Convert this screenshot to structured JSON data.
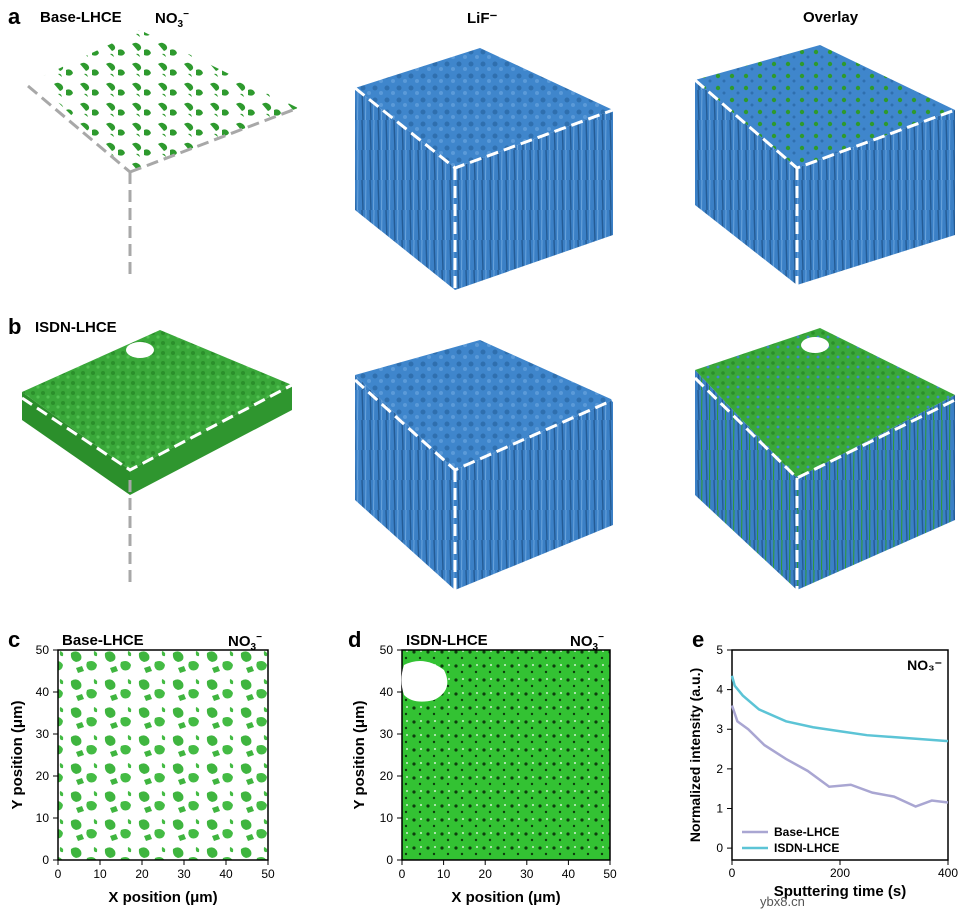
{
  "panels": {
    "a": {
      "letter": "a",
      "sample": "Base-LHCE",
      "col1": "NO",
      "col1_sub": "3",
      "col1_sup": "−",
      "col2": "LiF⁻",
      "col3": "Overlay"
    },
    "b": {
      "letter": "b",
      "sample": "ISDN-LHCE"
    },
    "c": {
      "letter": "c",
      "sample": "Base-LHCE",
      "ion": "NO",
      "ion_sub": "3",
      "ion_sup": "−",
      "xlabel": "X position (μm)",
      "ylabel": "Y position (μm)",
      "xticks": [
        "0",
        "10",
        "20",
        "30",
        "40",
        "50"
      ],
      "yticks": [
        "0",
        "10",
        "20",
        "30",
        "40",
        "50"
      ]
    },
    "d": {
      "letter": "d",
      "sample": "ISDN-LHCE",
      "ion": "NO",
      "ion_sub": "3",
      "ion_sup": "−",
      "xlabel": "X position (μm)",
      "ylabel": "Y position (μm)",
      "xticks": [
        "0",
        "10",
        "20",
        "30",
        "40",
        "50"
      ],
      "yticks": [
        "0",
        "10",
        "20",
        "30",
        "40",
        "50"
      ]
    },
    "e": {
      "letter": "e"
    }
  },
  "colors": {
    "green": "#2ca02c",
    "blue": "#3a7fc4",
    "dash": "#ffffff",
    "grey": "#a8a8a8",
    "purple": "#a9a6d2",
    "cyan": "#5cc4d6"
  },
  "watermark": "ybx8.cn",
  "chart_data": {
    "type": "line",
    "title": "NO₃⁻",
    "xlabel": "Sputtering time (s)",
    "ylabel": "Normalized intensity (a.u.)",
    "xlim": [
      0,
      400
    ],
    "ylim": [
      -0.3,
      5
    ],
    "xticks": [
      0,
      200,
      400
    ],
    "yticks": [
      0,
      1,
      2,
      3,
      4,
      5
    ],
    "legend": "bottom-left",
    "series": [
      {
        "name": "Base-LHCE",
        "color": "#a9a6d2",
        "x": [
          0,
          10,
          30,
          60,
          100,
          140,
          180,
          220,
          260,
          300,
          340,
          370,
          400
        ],
        "y": [
          3.6,
          3.2,
          3.0,
          2.6,
          2.25,
          1.95,
          1.55,
          1.6,
          1.4,
          1.3,
          1.05,
          1.2,
          1.15
        ]
      },
      {
        "name": "ISDN-LHCE",
        "color": "#5cc4d6",
        "x": [
          0,
          5,
          20,
          50,
          100,
          150,
          200,
          250,
          300,
          350,
          400
        ],
        "y": [
          4.35,
          4.1,
          3.85,
          3.5,
          3.2,
          3.05,
          2.95,
          2.85,
          2.8,
          2.75,
          2.7
        ]
      }
    ]
  }
}
